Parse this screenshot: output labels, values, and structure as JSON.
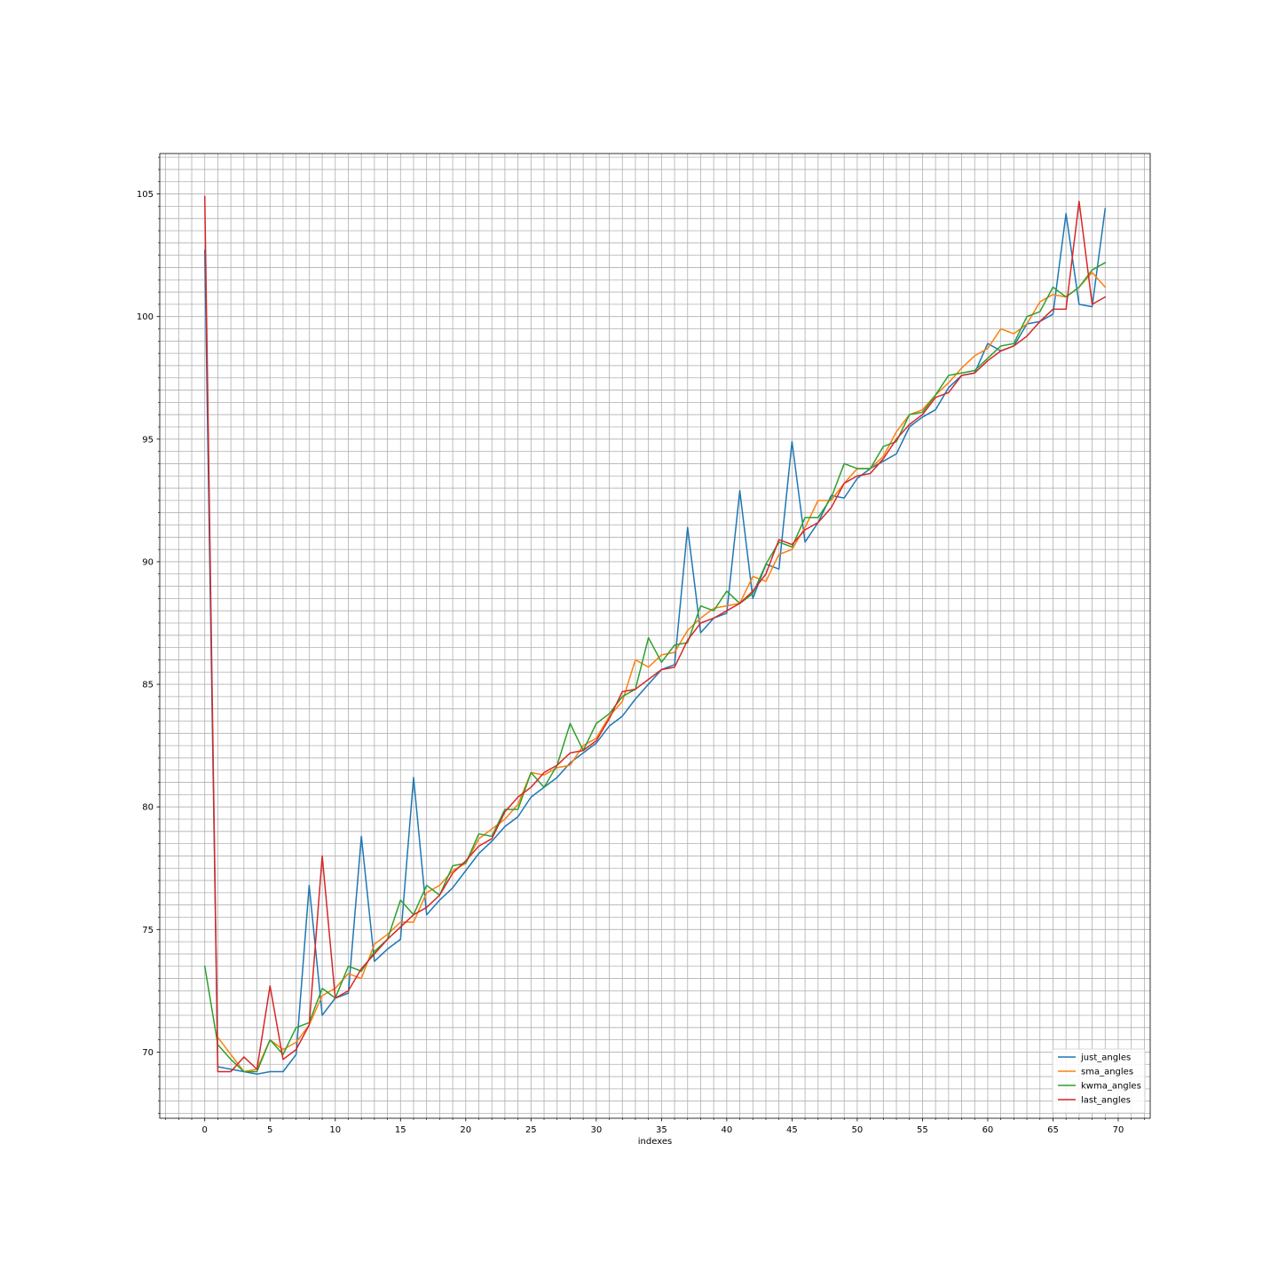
{
  "chart_data": {
    "type": "line",
    "title": "",
    "xlabel": "indexes",
    "ylabel": "",
    "xlim": [
      -3.45,
      72.45
    ],
    "ylim": [
      67.3,
      106.65
    ],
    "grid": "major and minor",
    "legend_position": "lower right",
    "x_ticks": [
      0,
      5,
      10,
      15,
      20,
      25,
      30,
      35,
      40,
      45,
      50,
      55,
      60,
      65,
      70
    ],
    "x_tick_labels": [
      "0",
      "5",
      "10",
      "15",
      "20",
      "25",
      "30",
      "35",
      "40",
      "45",
      "50",
      "55",
      "60",
      "65",
      "70"
    ],
    "y_ticks": [
      70,
      75,
      80,
      85,
      90,
      95,
      100,
      105
    ],
    "y_tick_labels": [
      "70",
      "75",
      "80",
      "85",
      "90",
      "95",
      "100",
      "105"
    ],
    "series": [
      {
        "name": "just_angles",
        "color": "#1f77b4",
        "values": [
          102.7,
          69.4,
          69.3,
          69.2,
          69.1,
          69.2,
          69.2,
          69.9,
          76.8,
          71.5,
          72.2,
          72.4,
          78.8,
          73.7,
          74.2,
          74.6,
          81.2,
          75.6,
          76.2,
          76.7,
          77.4,
          78.1,
          78.6,
          79.2,
          79.6,
          80.4,
          80.8,
          81.2,
          81.8,
          82.2,
          82.6,
          83.3,
          83.7,
          84.4,
          85.0,
          85.6,
          85.8,
          91.4,
          87.1,
          87.7,
          87.9,
          92.9,
          88.5,
          89.9,
          89.7,
          94.9,
          90.8,
          91.6,
          92.7,
          92.6,
          93.4,
          93.8,
          94.1,
          94.4,
          95.5,
          95.9,
          96.2,
          97.1,
          97.6,
          97.7,
          98.9,
          98.6,
          98.8,
          99.7,
          99.8,
          100.1,
          104.2,
          100.5,
          100.4,
          104.4
        ]
      },
      {
        "name": "sma_angles",
        "color": "#ff7f0e",
        "values": [
          null,
          70.6,
          69.9,
          69.2,
          69.3,
          70.5,
          70.1,
          70.4,
          71.1,
          72.3,
          72.6,
          73.2,
          73.0,
          74.4,
          74.8,
          75.3,
          75.3,
          76.5,
          76.8,
          77.4,
          77.7,
          78.7,
          79.1,
          79.5,
          80.1,
          81.4,
          81.3,
          81.6,
          81.7,
          82.5,
          82.8,
          83.7,
          84.3,
          86.0,
          85.7,
          86.2,
          86.3,
          87.2,
          87.7,
          88.1,
          88.2,
          88.3,
          89.4,
          89.2,
          90.3,
          90.5,
          91.4,
          92.5,
          92.5,
          93.2,
          93.8,
          93.8,
          94.3,
          95.3,
          96.0,
          96.2,
          96.8,
          97.3,
          97.9,
          98.4,
          98.7,
          99.5,
          99.3,
          99.7,
          100.6,
          100.9,
          100.8,
          101.2,
          101.8,
          101.2
        ]
      },
      {
        "name": "kwma_angles",
        "color": "#2ca02c",
        "values": [
          73.5,
          70.3,
          69.7,
          69.2,
          69.2,
          70.5,
          69.9,
          71.0,
          71.2,
          72.6,
          72.2,
          73.5,
          73.3,
          74.1,
          74.6,
          76.2,
          75.6,
          76.8,
          76.4,
          77.6,
          77.7,
          78.9,
          78.8,
          79.9,
          79.9,
          81.4,
          80.8,
          81.7,
          83.4,
          82.3,
          83.4,
          83.8,
          84.5,
          84.8,
          86.9,
          85.9,
          86.6,
          86.7,
          88.2,
          88.0,
          88.8,
          88.3,
          88.7,
          89.9,
          90.8,
          90.6,
          91.8,
          91.8,
          92.6,
          94.0,
          93.8,
          93.8,
          94.7,
          94.9,
          96.0,
          96.1,
          96.8,
          97.6,
          97.7,
          97.8,
          98.3,
          98.8,
          98.9,
          100.0,
          100.2,
          101.2,
          100.8,
          101.2,
          101.9,
          102.2
        ]
      },
      {
        "name": "last_angles",
        "color": "#d62728",
        "values": [
          104.9,
          69.2,
          69.2,
          69.8,
          69.3,
          72.7,
          69.7,
          70.1,
          71.1,
          78.0,
          72.2,
          72.5,
          73.4,
          74.0,
          74.6,
          75.1,
          75.6,
          75.9,
          76.4,
          77.3,
          77.8,
          78.4,
          78.7,
          79.8,
          80.4,
          80.8,
          81.4,
          81.7,
          82.2,
          82.3,
          82.7,
          83.6,
          84.7,
          84.8,
          85.2,
          85.6,
          85.7,
          86.8,
          87.5,
          87.7,
          88.0,
          88.3,
          88.8,
          89.5,
          90.9,
          90.7,
          91.3,
          91.6,
          92.2,
          93.2,
          93.5,
          93.6,
          94.2,
          95.0,
          95.6,
          96.0,
          96.7,
          96.9,
          97.6,
          97.7,
          98.2,
          98.6,
          98.8,
          99.2,
          99.8,
          100.3,
          100.3,
          104.7,
          100.5,
          100.8
        ]
      }
    ]
  }
}
